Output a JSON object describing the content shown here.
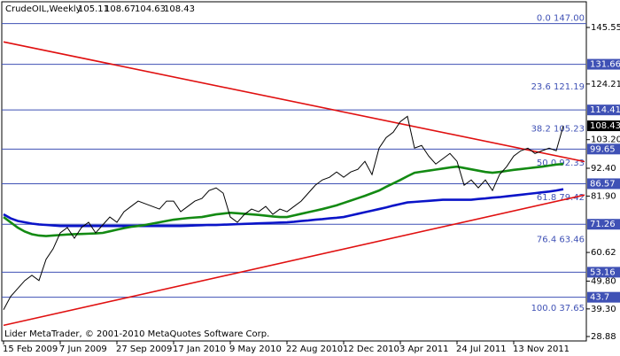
{
  "chart_data": {
    "type": "line",
    "symbol": "CrudeOIL,Weekly",
    "ohlc": [
      105.11,
      108.67,
      104.63,
      108.43
    ],
    "footer": "Lider MetaTrader, © 2001-2010 MetaQuotes Software Corp.",
    "categories": [
      "15 Feb 2009",
      null,
      null,
      null,
      null,
      null,
      null,
      null,
      "7 Jun 2009",
      null,
      null,
      null,
      null,
      null,
      null,
      null,
      "27 Sep 2009",
      null,
      null,
      null,
      null,
      null,
      null,
      null,
      "17 Jan 2010",
      null,
      null,
      null,
      null,
      null,
      null,
      null,
      "9 May 2010",
      null,
      null,
      null,
      null,
      null,
      null,
      null,
      "22 Aug 2010",
      null,
      null,
      null,
      null,
      null,
      null,
      null,
      "12 Dec 2010",
      null,
      null,
      null,
      null,
      null,
      null,
      null,
      "3 Apr 2011",
      null,
      null,
      null,
      null,
      null,
      null,
      null,
      "24 Jul 2011",
      null,
      null,
      null,
      null,
      null,
      null,
      null,
      "13 Nov 2011",
      null,
      null,
      null,
      null,
      null,
      null,
      null,
      null,
      null,
      null
    ],
    "series": [
      {
        "color": "#000000",
        "values": [
          39,
          44,
          47,
          50,
          52,
          50,
          58,
          62,
          68,
          70,
          66,
          70,
          72,
          68,
          71,
          74,
          72,
          76,
          78,
          80,
          79,
          78,
          77,
          80,
          80,
          76,
          78,
          80,
          81,
          84,
          85,
          83,
          74,
          72,
          75,
          77,
          76,
          78,
          75,
          77,
          76,
          78,
          80,
          83,
          86,
          88,
          89,
          91,
          89,
          91,
          92,
          95,
          90,
          100,
          104,
          106,
          110,
          112,
          100,
          101,
          97,
          94,
          96,
          98,
          95,
          86,
          88,
          85,
          88,
          84,
          90,
          93,
          97,
          99,
          100,
          98,
          99,
          100,
          99,
          108.43,
          null,
          null,
          null
        ]
      },
      {
        "color": "#138a13",
        "values": [
          74,
          72,
          70,
          68.5,
          67.5,
          67,
          66.8,
          67,
          67.2,
          67.4,
          67.5,
          67.6,
          67.7,
          67.8,
          68,
          68.6,
          69.2,
          69.8,
          70.3,
          70.6,
          71,
          71.5,
          72,
          72.5,
          73,
          73.3,
          73.6,
          73.8,
          74,
          74.5,
          75,
          75.3,
          75.6,
          75.4,
          75.2,
          75,
          74.8,
          74.5,
          74.2,
          74,
          74,
          74.6,
          75.2,
          75.8,
          76.4,
          77,
          77.7,
          78.4,
          79.3,
          80.2,
          81.1,
          82,
          83,
          84,
          85.4,
          86.7,
          88,
          89.4,
          90.7,
          91.1,
          91.5,
          91.9,
          92.3,
          92.7,
          93,
          92.5,
          92,
          91.5,
          91,
          90.7,
          91,
          91.4,
          91.8,
          92.1,
          92.4,
          92.7,
          93,
          93.4,
          93.8,
          94,
          null,
          null,
          null
        ]
      },
      {
        "color": "#0a14c8",
        "values": [
          75,
          73.5,
          72.5,
          72,
          71.5,
          71.2,
          71,
          70.8,
          70.6,
          70.6,
          70.6,
          70.6,
          70.6,
          70.6,
          70.6,
          70.6,
          70.6,
          70.6,
          70.6,
          70.6,
          70.6,
          70.6,
          70.6,
          70.6,
          70.6,
          70.6,
          70.7,
          70.8,
          70.9,
          71,
          71,
          71.1,
          71.2,
          71.3,
          71.4,
          71.5,
          71.6,
          71.7,
          71.8,
          71.9,
          72,
          72.2,
          72.5,
          72.7,
          73,
          73.2,
          73.5,
          73.7,
          74,
          74.6,
          75.2,
          75.8,
          76.4,
          77,
          77.6,
          78.3,
          78.9,
          79.5,
          79.7,
          79.9,
          80.1,
          80.3,
          80.5,
          80.5,
          80.5,
          80.5,
          80.5,
          80.8,
          81,
          81.3,
          81.5,
          81.8,
          82.1,
          82.4,
          82.7,
          83,
          83.3,
          83.6,
          84,
          84.5,
          null,
          null,
          null
        ]
      }
    ],
    "trendlines": [
      {
        "color": "#e01010",
        "x": [
          0,
          82
        ],
        "y": [
          140.1,
          94.9
        ]
      },
      {
        "color": "#e01010",
        "x": [
          0,
          82
        ],
        "y": [
          33.1,
          82.3
        ]
      }
    ],
    "ylim": [
      27.21,
      155.25
    ],
    "yticks": [
      145.55,
      124.21,
      {
        "value": 103.2,
        "label": "103.20"
      },
      {
        "value": 92.4,
        "label": "92.40"
      },
      {
        "value": 81.9,
        "label": "81.90"
      },
      60.62,
      {
        "value": 49.8,
        "label": "49.80"
      },
      {
        "value": 39.3,
        "label": "39.30"
      },
      28.88
    ],
    "levels": [
      131.66,
      114.41,
      99.65,
      86.57,
      71.26,
      53.16,
      43.7
    ],
    "level_color": "#3f51b5",
    "fibonacci": [
      {
        "label": "0.0 147.00",
        "price": 147
      },
      {
        "label": "23.6 121.19",
        "price": 121.19
      },
      {
        "label": "38.2 105.23",
        "price": 105.23
      },
      {
        "label": "50.0 92.33",
        "price": 92.33
      },
      {
        "label": "61.8 79.42",
        "price": 79.42
      },
      {
        "label": "76.4 63.46",
        "price": 63.46
      },
      {
        "label": "100.0 37.65",
        "price": 37.65
      }
    ]
  }
}
